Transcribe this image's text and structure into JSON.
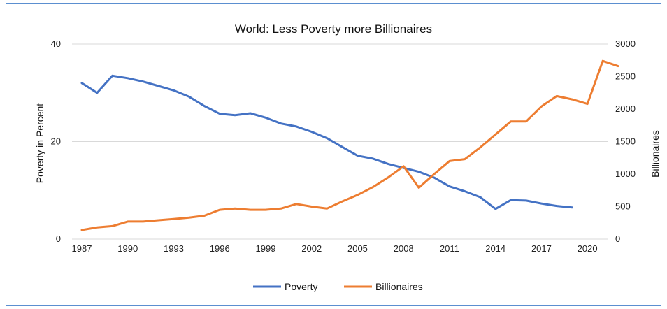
{
  "chart_data": {
    "type": "line",
    "title": "World: Less Poverty more Billionaires",
    "xlabel": "",
    "ylabel": "Poverty in Percent",
    "y2label": "Billionaires",
    "xlim": [
      1987,
      2022
    ],
    "ylim": [
      0,
      40
    ],
    "y2lim": [
      0,
      3000
    ],
    "x_ticks": [
      1987,
      1990,
      1993,
      1996,
      1999,
      2002,
      2005,
      2008,
      2011,
      2014,
      2017,
      2020
    ],
    "y_ticks": [
      0,
      20,
      40
    ],
    "y2_ticks": [
      0,
      500,
      1000,
      1500,
      2000,
      2500,
      3000
    ],
    "grid": "horizontal",
    "legend_position": "bottom",
    "series": [
      {
        "name": "Poverty",
        "axis": "left",
        "color": "#4472c4",
        "x": [
          1987,
          1988,
          1989,
          1990,
          1991,
          1992,
          1993,
          1994,
          1995,
          1996,
          1997,
          1998,
          1999,
          2000,
          2001,
          2002,
          2003,
          2004,
          2005,
          2006,
          2007,
          2008,
          2009,
          2010,
          2011,
          2012,
          2013,
          2014,
          2015,
          2016,
          2017,
          2018,
          2019
        ],
        "values": [
          32.0,
          30.0,
          33.5,
          33.0,
          32.3,
          31.4,
          30.5,
          29.2,
          27.3,
          25.7,
          25.4,
          25.8,
          24.9,
          23.7,
          23.1,
          22.0,
          20.7,
          18.9,
          17.1,
          16.5,
          15.4,
          14.6,
          13.8,
          12.6,
          10.8,
          9.8,
          8.6,
          6.2,
          8.0,
          7.9,
          7.3,
          6.8,
          6.5
        ]
      },
      {
        "name": "Billionaires",
        "axis": "right",
        "color": "#ed7d31",
        "x": [
          1987,
          1988,
          1989,
          1990,
          1991,
          1992,
          1993,
          1994,
          1995,
          1996,
          1997,
          1998,
          1999,
          2000,
          2001,
          2002,
          2003,
          2004,
          2005,
          2006,
          2007,
          2008,
          2009,
          2010,
          2011,
          2012,
          2013,
          2014,
          2015,
          2016,
          2017,
          2018,
          2019,
          2020,
          2021,
          2022
        ],
        "values": [
          140,
          180,
          200,
          270,
          270,
          290,
          310,
          330,
          360,
          450,
          470,
          450,
          450,
          470,
          540,
          500,
          470,
          580,
          680,
          800,
          950,
          1120,
          790,
          1000,
          1200,
          1230,
          1410,
          1610,
          1810,
          1810,
          2040,
          2200,
          2150,
          2080,
          2740,
          2660
        ]
      }
    ]
  }
}
